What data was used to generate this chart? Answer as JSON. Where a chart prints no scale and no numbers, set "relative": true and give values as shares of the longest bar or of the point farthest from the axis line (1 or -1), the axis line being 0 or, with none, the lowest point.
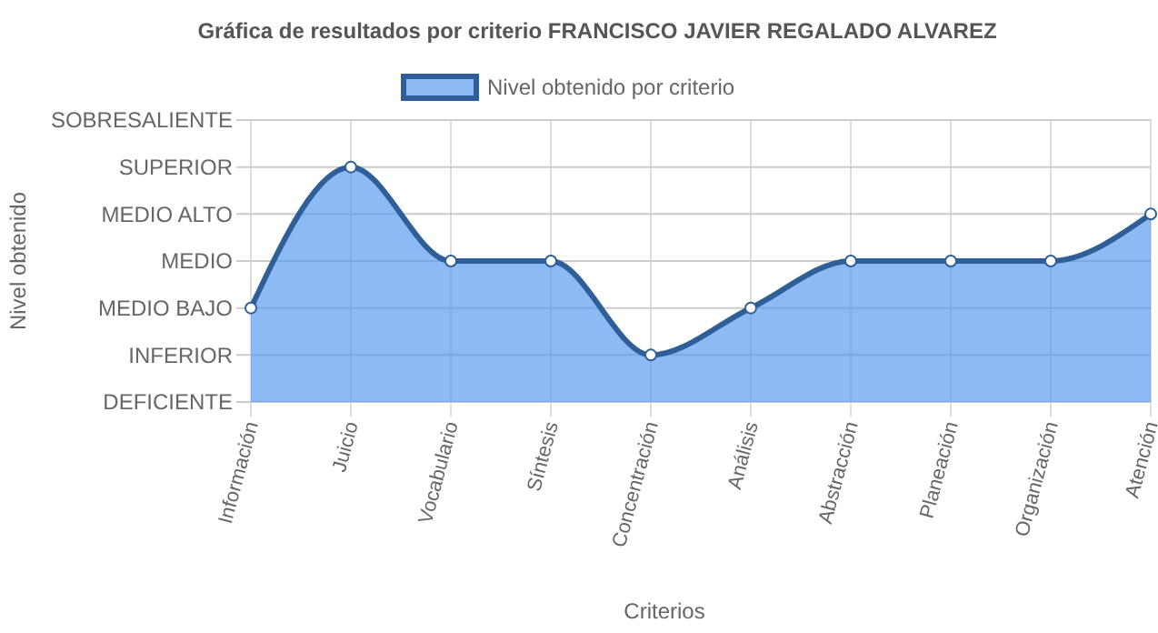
{
  "chart_data": {
    "type": "area",
    "title": "Gráfica de resultados por criterio FRANCISCO JAVIER REGALADO ALVAREZ",
    "xlabel": "Criterios",
    "annotations": [
      "Nivel obtenido"
    ],
    "categories": [
      "Información",
      "Juicio",
      "Vocabulario",
      "Síntesis",
      "Concentración",
      "Análisis",
      "Abstracción",
      "Planeación",
      "Organización",
      "Atención"
    ],
    "series": [
      {
        "name": "Nivel obtenido por criterio",
        "color": "#2f5f98",
        "values": [
          0.4,
          1,
          0.6,
          0.6,
          0.2,
          0.4,
          0.6,
          0.6,
          0.6,
          0.8
        ]
      }
    ],
    "relative": true,
    "ref_lines": [
      {
        "axis": "y",
        "value": 0,
        "label": "DEFICIENTE",
        "color": "#cccccc"
      },
      {
        "axis": "y",
        "value": 0.2,
        "label": "INFERIOR",
        "color": "#cccccc"
      },
      {
        "axis": "y",
        "value": 0.4,
        "label": "MEDIO BAJO",
        "color": "#cccccc"
      },
      {
        "axis": "y",
        "value": 0.6,
        "label": "MEDIO",
        "color": "#cccccc"
      },
      {
        "axis": "y",
        "value": 0.8,
        "label": "MEDIO ALTO",
        "color": "#cccccc"
      },
      {
        "axis": "y",
        "value": 1,
        "label": "SUPERIOR",
        "color": "#cccccc"
      },
      {
        "axis": "y",
        "value": 1.2,
        "label": "SOBRESALIENTE",
        "color": "#cccccc"
      }
    ],
    "grid": "x",
    "legend": "top",
    "marker": "circle",
    "line_style": "solid"
  }
}
